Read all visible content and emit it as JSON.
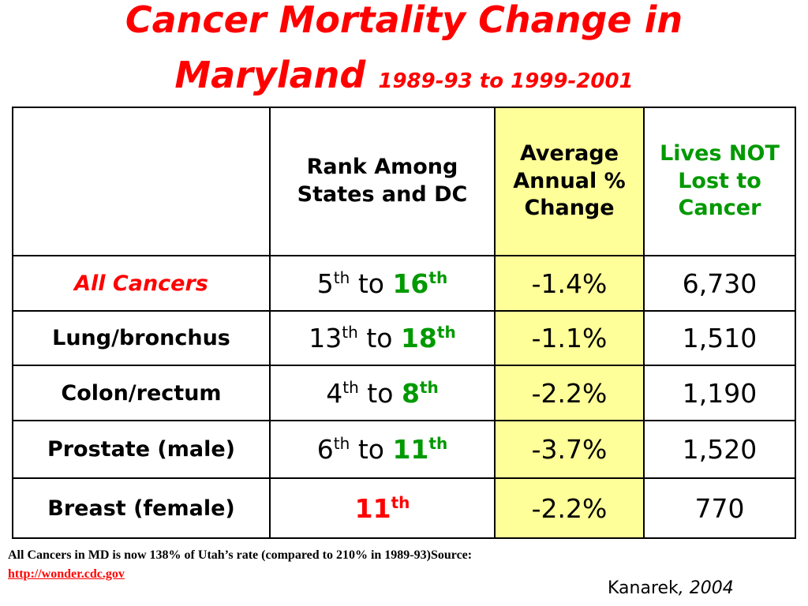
{
  "title": {
    "line1": "Cancer Mortality Change in",
    "line2_main": "Maryland",
    "line2_sub": "1989-93 to 1999-2001"
  },
  "table": {
    "headers": {
      "blank": "",
      "rank": "Rank Among States and DC",
      "change": "Average Annual % Change",
      "lives": "Lives NOT Lost to Cancer"
    },
    "rows": [
      {
        "label": "All Cancers",
        "rank_old": "5",
        "rank_old_suffix": "th",
        "rank_to": "to",
        "rank_new": "16",
        "rank_new_suffix": "th",
        "change": "-1.4%",
        "lives": "6,730"
      },
      {
        "label": "Lung/bronchus",
        "rank_old": "13",
        "rank_old_suffix": "th",
        "rank_to": "to",
        "rank_new": "18",
        "rank_new_suffix": "th",
        "change": "-1.1%",
        "lives": "1,510"
      },
      {
        "label": "Colon/rectum",
        "rank_old": "4",
        "rank_old_suffix": "th",
        "rank_to": "to",
        "rank_new": "8",
        "rank_new_suffix": "th",
        "change": "-2.2%",
        "lives": "1,190"
      },
      {
        "label": "Prostate (male)",
        "rank_old": "6",
        "rank_old_suffix": "th",
        "rank_to": "to",
        "rank_new": "11",
        "rank_new_suffix": "th",
        "change": "-3.7%",
        "lives": "1,520"
      },
      {
        "label": "Breast (female)",
        "rank_single": "11",
        "rank_single_suffix": "th",
        "change": "-2.2%",
        "lives": "770"
      }
    ]
  },
  "footnote": {
    "text": "All Cancers in MD is now 138% of Utah’s rate (compared to 210% in 1989-93)Source:",
    "link": "http://wonder.cdc.gov"
  },
  "credit": {
    "author": "Kanarek",
    "year": ", 2004"
  },
  "colors": {
    "title": "#ff0000",
    "highlight_column": "#ffff99",
    "rank_new": "#009900",
    "lives_header": "#009900",
    "link": "#ff0000"
  }
}
